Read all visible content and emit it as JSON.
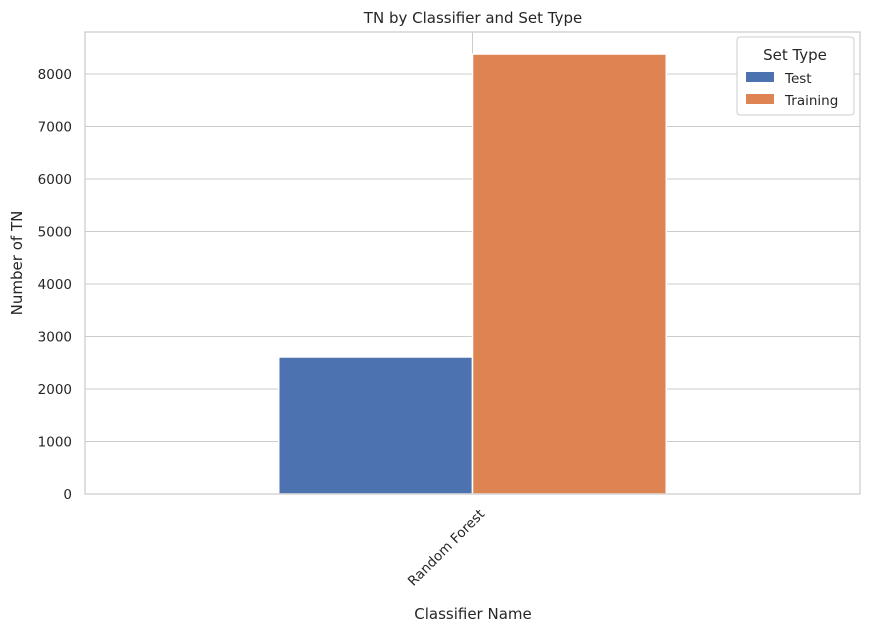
{
  "chart_data": {
    "type": "bar",
    "title": "TN by Classifier and Set Type",
    "xlabel": "Classifier Name",
    "ylabel": "Number of TN",
    "categories": [
      "Random Forest"
    ],
    "series": [
      {
        "name": "Test",
        "values": [
          2610
        ],
        "color": "#4c72b0"
      },
      {
        "name": "Training",
        "values": [
          8380
        ],
        "color": "#dd8452"
      }
    ],
    "ylim": [
      0,
      8800
    ],
    "yticks": [
      0,
      1000,
      2000,
      3000,
      4000,
      5000,
      6000,
      7000,
      8000
    ],
    "grid": true,
    "legend": {
      "title": "Set Type",
      "position": "top-right"
    },
    "colors": {
      "grid": "#cccccc",
      "axes": "#cccccc",
      "text": "#262626"
    }
  }
}
